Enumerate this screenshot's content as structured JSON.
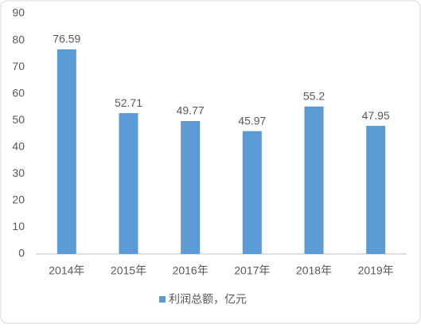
{
  "chart_data": {
    "type": "bar",
    "categories": [
      "2014年",
      "2015年",
      "2016年",
      "2017年",
      "2018年",
      "2019年"
    ],
    "series": [
      {
        "name": "利润总额，亿元",
        "color": "#5b9bd5",
        "values": [
          76.59,
          52.71,
          49.77,
          45.97,
          55.2,
          47.95
        ]
      }
    ],
    "ylim": [
      0,
      90
    ],
    "yticks": [
      0,
      10,
      20,
      30,
      40,
      50,
      60,
      70,
      80,
      90
    ],
    "grid": false,
    "legend": "bottom"
  }
}
